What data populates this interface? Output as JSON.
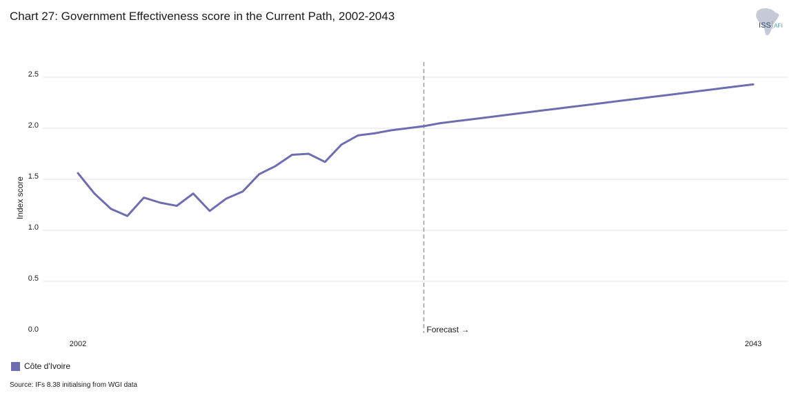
{
  "header": {
    "title": "Chart 27: Government Effectiveness score in the Current Path, 2002-2043"
  },
  "logo": {
    "text_main": "ISS",
    "text_sub": "AFI",
    "icon": "africa-map-icon"
  },
  "chart_data": {
    "type": "line",
    "title": "Chart 27: Government Effectiveness score in the Current Path, 2002-2043",
    "xlabel": "",
    "ylabel": "Index score",
    "xlim": [
      2002,
      2043
    ],
    "ylim": [
      0,
      2.5
    ],
    "yticks": [
      0.0,
      0.5,
      1.0,
      1.5,
      2.0,
      2.5
    ],
    "ytick_labels": [
      "0.0",
      "0.5",
      "1.0",
      "1.5",
      "2.0",
      "2.5"
    ],
    "xtick_labels": [
      "2002",
      "2043"
    ],
    "grid": "horizontal",
    "legend_position": "bottom-left",
    "forecast_start": 2023,
    "forecast_label": "Forecast →",
    "series": [
      {
        "name": "Côte d'Ivoire",
        "color": "#6f6db1",
        "x": [
          2002,
          2003,
          2004,
          2005,
          2006,
          2007,
          2008,
          2009,
          2010,
          2011,
          2012,
          2013,
          2014,
          2015,
          2016,
          2017,
          2018,
          2019,
          2020,
          2021,
          2022,
          2023,
          2024,
          2025,
          2026,
          2027,
          2028,
          2029,
          2030,
          2031,
          2032,
          2033,
          2034,
          2035,
          2036,
          2037,
          2038,
          2039,
          2040,
          2041,
          2042,
          2043
        ],
        "values": [
          1.56,
          1.36,
          1.21,
          1.14,
          1.32,
          1.27,
          1.24,
          1.36,
          1.19,
          1.31,
          1.38,
          1.55,
          1.63,
          1.74,
          1.75,
          1.67,
          1.84,
          1.93,
          1.95,
          1.98,
          2.0,
          2.02,
          2.05,
          2.07,
          2.09,
          2.11,
          2.13,
          2.15,
          2.17,
          2.19,
          2.21,
          2.23,
          2.25,
          2.27,
          2.29,
          2.31,
          2.33,
          2.35,
          2.37,
          2.39,
          2.41,
          2.43
        ]
      }
    ]
  },
  "legend": {
    "items": [
      {
        "label": "Côte d'Ivoire",
        "color": "#6f6db1"
      }
    ]
  },
  "footer": {
    "source": "Source: IFs 8.38 initialsing from WGI data"
  }
}
